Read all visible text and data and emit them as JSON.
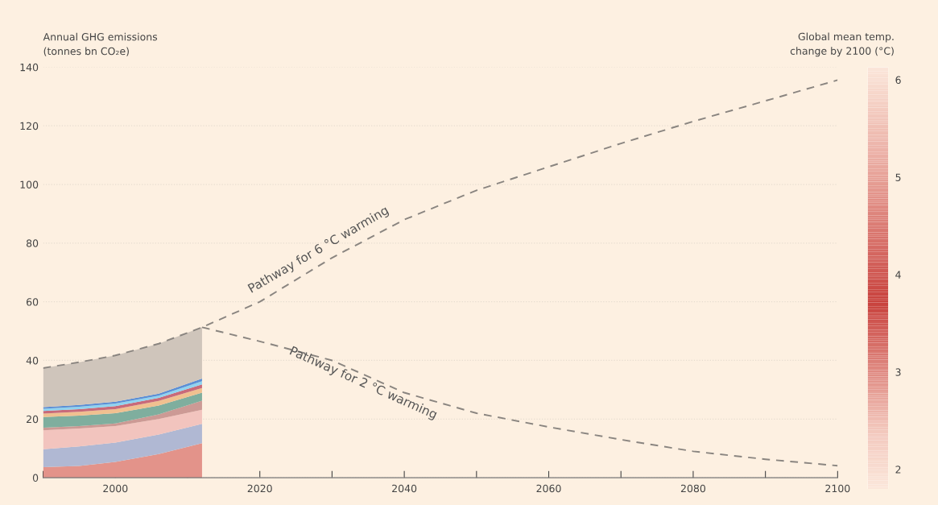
{
  "chart_data": {
    "type": "area",
    "stacked": true,
    "ylabel": "Annual GHG emissions\n(tonnes bn CO₂e)",
    "clabel": "Global mean temp.\nchange by 2100 (°C)",
    "xlim": [
      1990,
      2100
    ],
    "xticks": [
      {
        "value": 1990,
        "label": null
      },
      2000,
      {
        "value": 2010,
        "label": null
      },
      2020,
      {
        "value": 2030,
        "label": null
      },
      2040,
      {
        "value": 2050,
        "label": null
      },
      2060,
      {
        "value": 2070,
        "label": null
      },
      2080,
      {
        "value": 2090,
        "label": null
      },
      2100
    ],
    "ylim": [
      0,
      140
    ],
    "yticks": [
      0,
      20,
      40,
      60,
      80,
      100,
      120,
      140
    ],
    "clim": [
      1.8,
      6.13
    ],
    "cticks": [
      2,
      3,
      4,
      5,
      6
    ],
    "grid": "y",
    "series": [
      {
        "color": "#e3938a",
        "x": [
          1990,
          1995,
          2000,
          2006,
          2012
        ],
        "values": [
          3.6,
          4.0,
          5.4,
          8.1,
          11.8
        ]
      },
      {
        "color": "#b0b8d3",
        "x": [
          1990,
          1995,
          2000,
          2006,
          2012
        ],
        "values": [
          6.1,
          6.7,
          6.6,
          6.6,
          6.6
        ]
      },
      {
        "color": "#f2c4be",
        "x": [
          1990,
          1995,
          2000,
          2006,
          2012
        ],
        "values": [
          6.5,
          6.1,
          5.6,
          5.3,
          4.8
        ]
      },
      {
        "color": "#cc9a95",
        "x": [
          1990,
          1995,
          2000,
          2006,
          2012
        ],
        "values": [
          0.9,
          0.8,
          0.9,
          1.6,
          3.1
        ]
      },
      {
        "color": "#7fae9e",
        "x": [
          1990,
          1995,
          2000,
          2006,
          2012
        ],
        "values": [
          3.6,
          3.6,
          3.5,
          3.0,
          2.7
        ]
      },
      {
        "color": "#f0c090",
        "x": [
          1990,
          1995,
          2000,
          2006,
          2012
        ],
        "values": [
          1.2,
          1.3,
          1.4,
          1.6,
          1.6
        ]
      },
      {
        "color": "#c86a7a",
        "x": [
          1990,
          1995,
          2000,
          2006,
          2012
        ],
        "values": [
          0.9,
          0.9,
          1.0,
          1.0,
          1.2
        ]
      },
      {
        "color": "#8fd3f0",
        "x": [
          1990,
          1995,
          2000,
          2006,
          2012
        ],
        "values": [
          0.7,
          0.8,
          0.9,
          0.8,
          1.1
        ]
      },
      {
        "color": "#5b8fd6",
        "x": [
          1990,
          1995,
          2000,
          2006,
          2012
        ],
        "values": [
          0.6,
          0.6,
          0.6,
          0.7,
          0.9
        ]
      },
      {
        "color": "#cfc5bb",
        "x": [
          1990,
          1995,
          2000,
          2006,
          2012
        ],
        "values": [
          13.3,
          14.6,
          15.8,
          17.0,
          17.5
        ]
      },
      {
        "type": "line",
        "line_style": "dashed",
        "color": "#8a8580",
        "x": [
          1990,
          1995,
          2000,
          2006,
          2012,
          2020,
          2030,
          2040,
          2050,
          2060,
          2070,
          2080,
          2090,
          2100
        ],
        "values": [
          37.4,
          39.4,
          41.7,
          45.7,
          51.3,
          60,
          75,
          88,
          98,
          106,
          114,
          121.5,
          128.5,
          135.6
        ]
      },
      {
        "type": "line",
        "line_style": "dashed",
        "color": "#8a8580",
        "x": [
          2012,
          2020,
          2030,
          2040,
          2050,
          2060,
          2070,
          2080,
          2090,
          2100
        ],
        "values": [
          51.3,
          46.5,
          40,
          29,
          22,
          17.3,
          13,
          9,
          6.3,
          4.1
        ]
      }
    ],
    "annotations": [
      {
        "text": "Pathway for 6 °C warming",
        "x": 2029,
        "y": 74
      },
      {
        "text": "Pathway for 2 °C warming",
        "x": 2035,
        "y": 36
      }
    ]
  }
}
